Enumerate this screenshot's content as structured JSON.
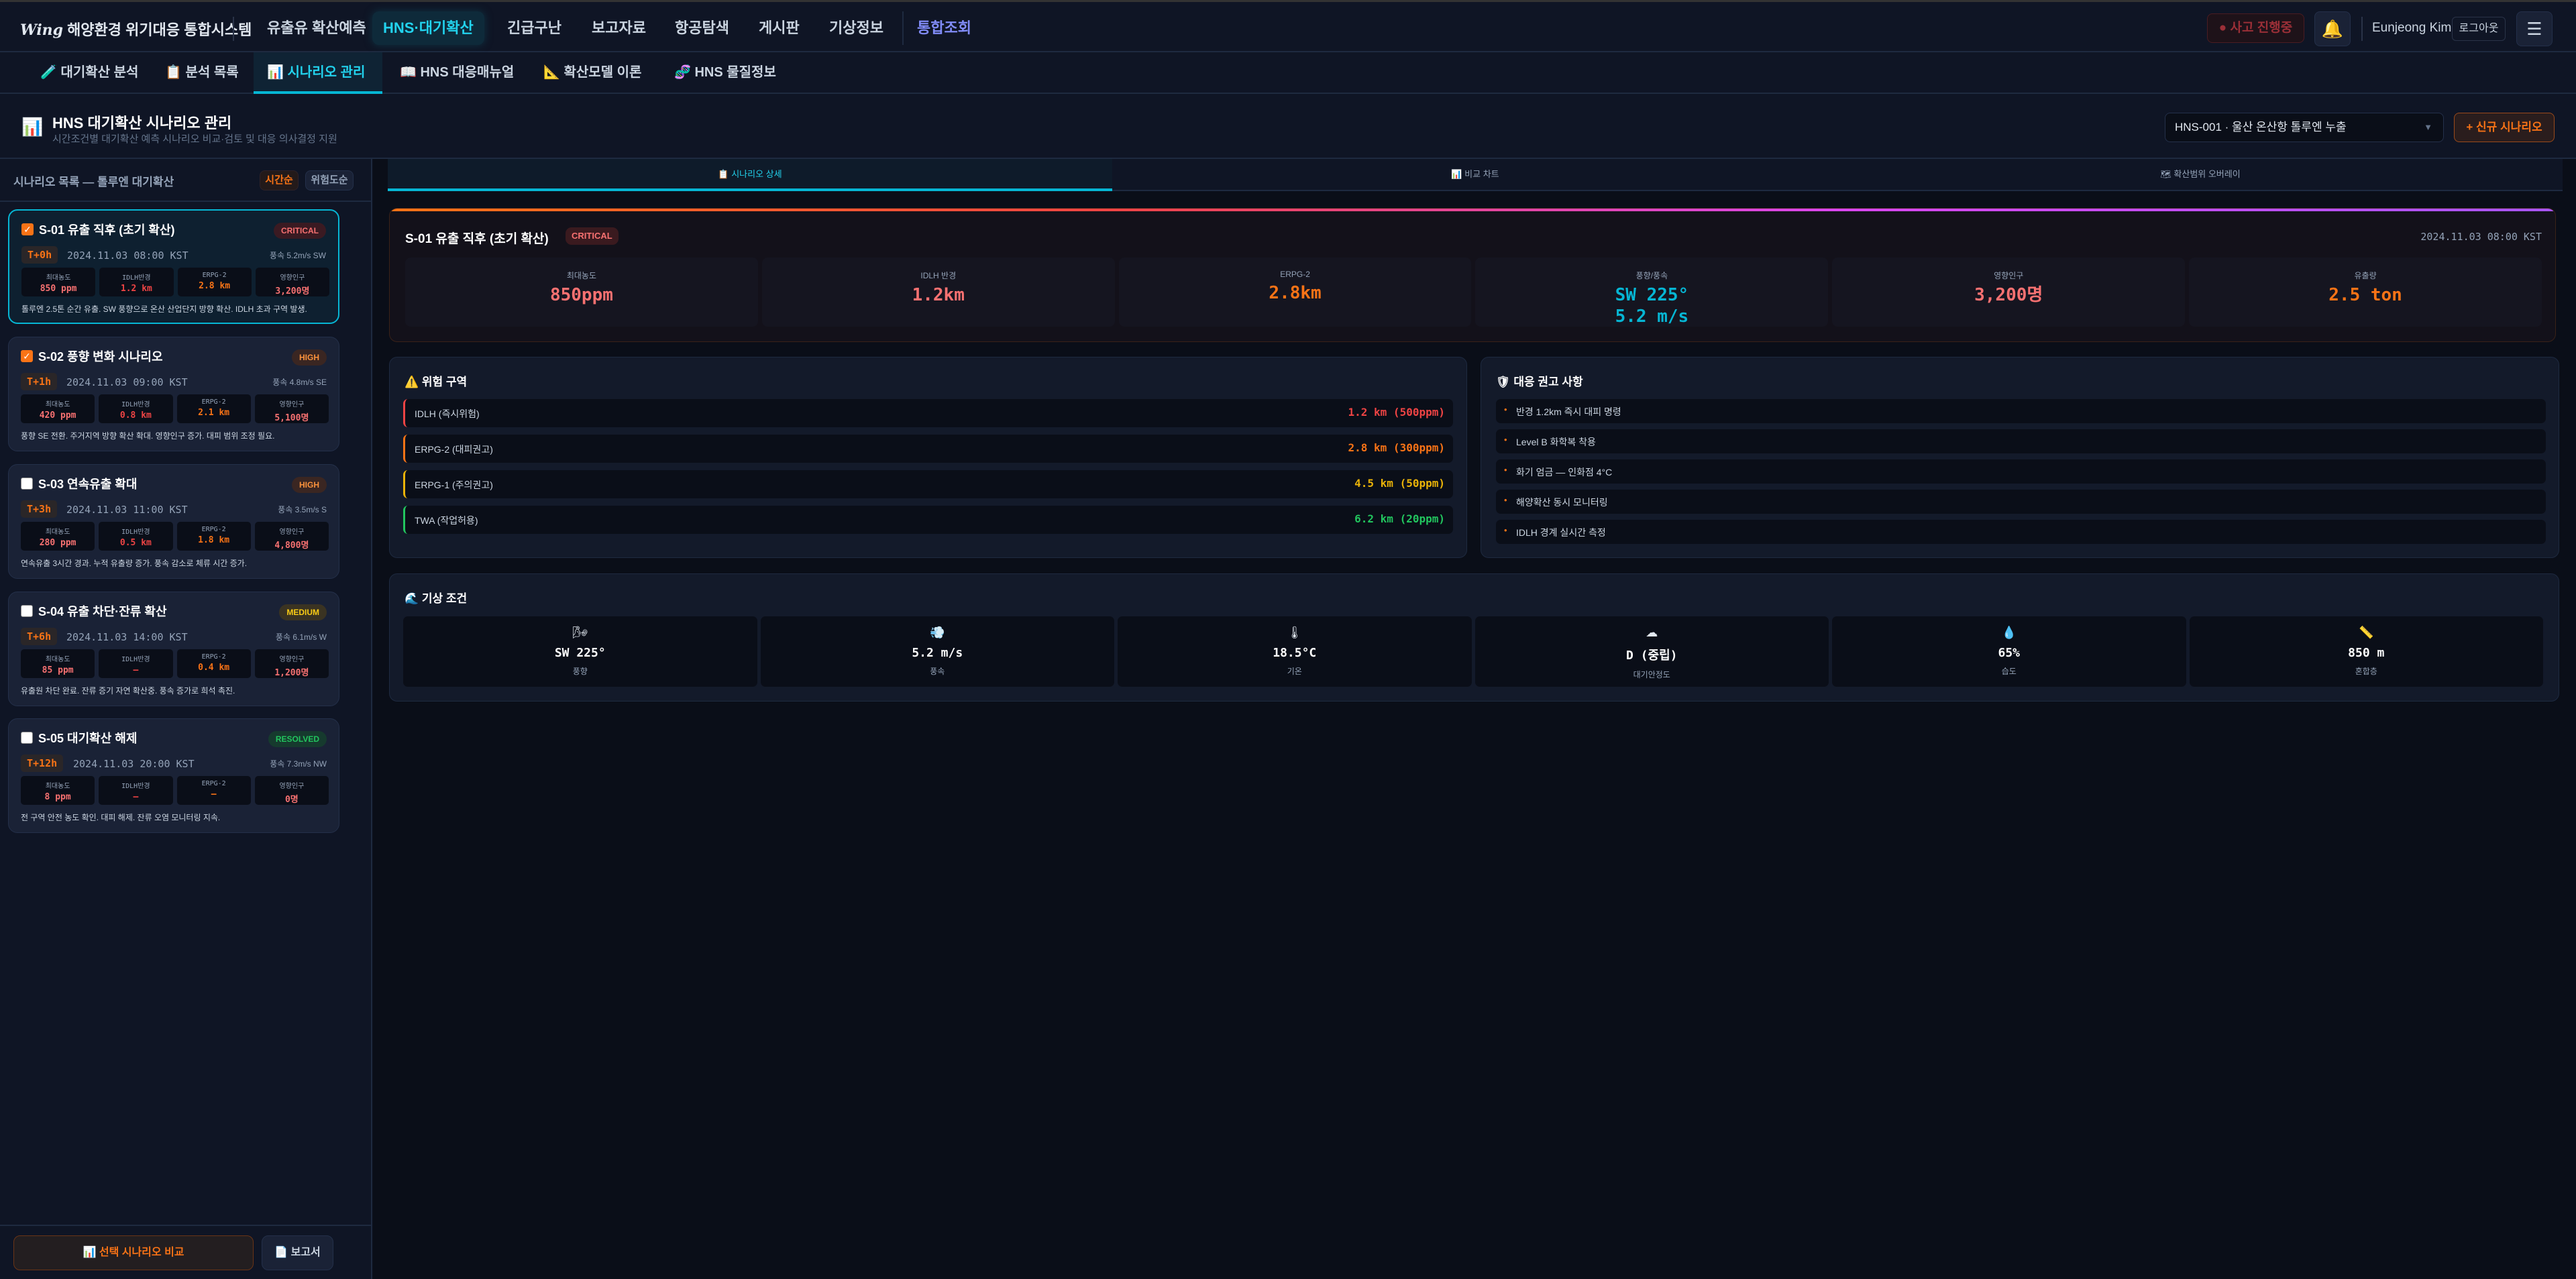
{
  "app": {
    "logo": "Wing",
    "title": "해양환경 위기대응 통합시스템"
  },
  "nav": {
    "items": [
      "유출유 확산예측",
      "HNS·대기확산",
      "긴급구난",
      "보고자료",
      "항공탐색",
      "게시판",
      "기상정보",
      "통합조회"
    ],
    "active": 1,
    "incident_label": "사고 진행중",
    "user": "Eunjeong Kim",
    "logout": "로그아웃"
  },
  "subtabs": [
    {
      "icon": "🧪",
      "label": "대기확산 분석"
    },
    {
      "icon": "📋",
      "label": "분석 목록"
    },
    {
      "icon": "📊",
      "label": "시나리오 관리"
    },
    {
      "icon": "📖",
      "label": "HNS 대응매뉴얼"
    },
    {
      "icon": "📐",
      "label": "확산모델 이론"
    },
    {
      "icon": "🧬",
      "label": "HNS 물질정보"
    }
  ],
  "page": {
    "title": "HNS 대기확산 시나리오 관리",
    "subtitle": "시간조건별 대기확산 예측 시나리오 비교·검토 및 대응 의사결정 지원",
    "incident_select": "HNS-001 · 울산 온산항 톨루엔 누출",
    "new_button": "+ 신규 시나리오"
  },
  "scenario_list": {
    "title": "시나리오 목록 — 톨루엔 대기확산",
    "sort_time": "시간순",
    "sort_risk": "위험도순",
    "metric_labels": [
      "최대농도",
      "IDLH반경",
      "ERPG-2",
      "영향인구"
    ],
    "cards": [
      {
        "checked": true,
        "title": "S-01 유출 직후 (초기 확산)",
        "badge": "CRITICAL",
        "t": "T+0h",
        "time": "2024.11.03 08:00 KST",
        "wind": "풍속 5.2m/s SW",
        "values": [
          "850 ppm",
          "1.2 km",
          "2.8 km",
          "3,200명"
        ],
        "desc": "톨루엔 2.5톤 순간 유출. SW 풍향으로 온산 산업단지 방향 확산. IDLH 초과 구역 발생."
      },
      {
        "checked": true,
        "title": "S-02 풍향 변화 시나리오",
        "badge": "HIGH",
        "t": "T+1h",
        "time": "2024.11.03 09:00 KST",
        "wind": "풍속 4.8m/s SE",
        "values": [
          "420 ppm",
          "0.8 km",
          "2.1 km",
          "5,100명"
        ],
        "desc": "풍향 SE 전환. 주거지역 방향 확산 확대. 영향인구 증가. 대피 범위 조정 필요."
      },
      {
        "checked": false,
        "title": "S-03 연속유출 확대",
        "badge": "HIGH",
        "t": "T+3h",
        "time": "2024.11.03 11:00 KST",
        "wind": "풍속 3.5m/s S",
        "values": [
          "280 ppm",
          "0.5 km",
          "1.8 km",
          "4,800명"
        ],
        "desc": "연속유출 3시간 경과. 누적 유출량 증가. 풍속 감소로 체류 시간 증가."
      },
      {
        "checked": false,
        "title": "S-04 유출 차단·잔류 확산",
        "badge": "MEDIUM",
        "t": "T+6h",
        "time": "2024.11.03 14:00 KST",
        "wind": "풍속 6.1m/s W",
        "values": [
          "85 ppm",
          "—",
          "0.4 km",
          "1,200명"
        ],
        "desc": "유출원 차단 완료. 잔류 증기 자연 확산중. 풍속 증가로 희석 촉진."
      },
      {
        "checked": false,
        "title": "S-05 대기확산 해제",
        "badge": "RESOLVED",
        "t": "T+12h",
        "time": "2024.11.03 20:00 KST",
        "wind": "풍속 7.3m/s NW",
        "values": [
          "8 ppm",
          "—",
          "—",
          "0명"
        ],
        "desc": "전 구역 안전 농도 확인. 대피 해제. 잔류 오염 모니터링 지속."
      }
    ],
    "compare_button": "선택 시나리오 비교",
    "report_button": "보고서"
  },
  "detail_tabs": [
    "📋 시나리오 상세",
    "📊 비교 차트",
    "🗺 확산범위 오버레이"
  ],
  "summary": {
    "title": "S-01 유출 직후 (초기 확산)",
    "badge": "CRITICAL",
    "time": "2024.11.03 08:00 KST",
    "metrics": [
      {
        "label": "최대농도",
        "value": "850ppm",
        "color": "#f87171"
      },
      {
        "label": "IDLH 반경",
        "value": "1.2km",
        "color": "#f87171"
      },
      {
        "label": "ERPG-2",
        "value": "2.8km",
        "color": "#f97316"
      },
      {
        "label": "풍향/풍속",
        "value": "SW 225°",
        "value2": "5.2 m/s",
        "color": "#06b6d4"
      },
      {
        "label": "영향인구",
        "value": "3,200명",
        "color": "#f87171"
      },
      {
        "label": "유출량",
        "value": "2.5 ton",
        "color": "#f97316"
      }
    ]
  },
  "hazard": {
    "title": "위험 구역",
    "zones": [
      {
        "label": "IDLH (즉시위험)",
        "value": "1.2 km (500ppm)",
        "color": "#ef4444"
      },
      {
        "label": "ERPG-2 (대피권고)",
        "value": "2.8 km (300ppm)",
        "color": "#f97316"
      },
      {
        "label": "ERPG-1 (주의권고)",
        "value": "4.5 km (50ppm)",
        "color": "#eab308"
      },
      {
        "label": "TWA (작업허용)",
        "value": "6.2 km (20ppm)",
        "color": "#22c55e"
      }
    ]
  },
  "recommendations": {
    "title": "대응 권고 사항",
    "items": [
      "반경 1.2km 즉시 대피 명령",
      "Level B 화학복 착용",
      "화기 엄금 — 인화점 4°C",
      "해양확산 동시 모니터링",
      "IDLH 경계 실시간 측정"
    ]
  },
  "weather": {
    "title": "기상 조건",
    "items": [
      {
        "icon": "🌬",
        "value": "SW 225°",
        "label": "풍향"
      },
      {
        "icon": "💨",
        "value": "5.2 m/s",
        "label": "풍속"
      },
      {
        "icon": "🌡",
        "value": "18.5°C",
        "label": "기온"
      },
      {
        "icon": "☁",
        "value": "D (중립)",
        "label": "대기안정도"
      },
      {
        "icon": "💧",
        "value": "65%",
        "label": "습도"
      },
      {
        "icon": "📏",
        "value": "850 m",
        "label": "혼합층"
      }
    ]
  },
  "colors": {
    "accent": "#06b6d4",
    "orange": "#f97316",
    "critical": "#f87171",
    "high": "#fb923c",
    "medium": "#facc15",
    "resolved": "#22c55e"
  }
}
